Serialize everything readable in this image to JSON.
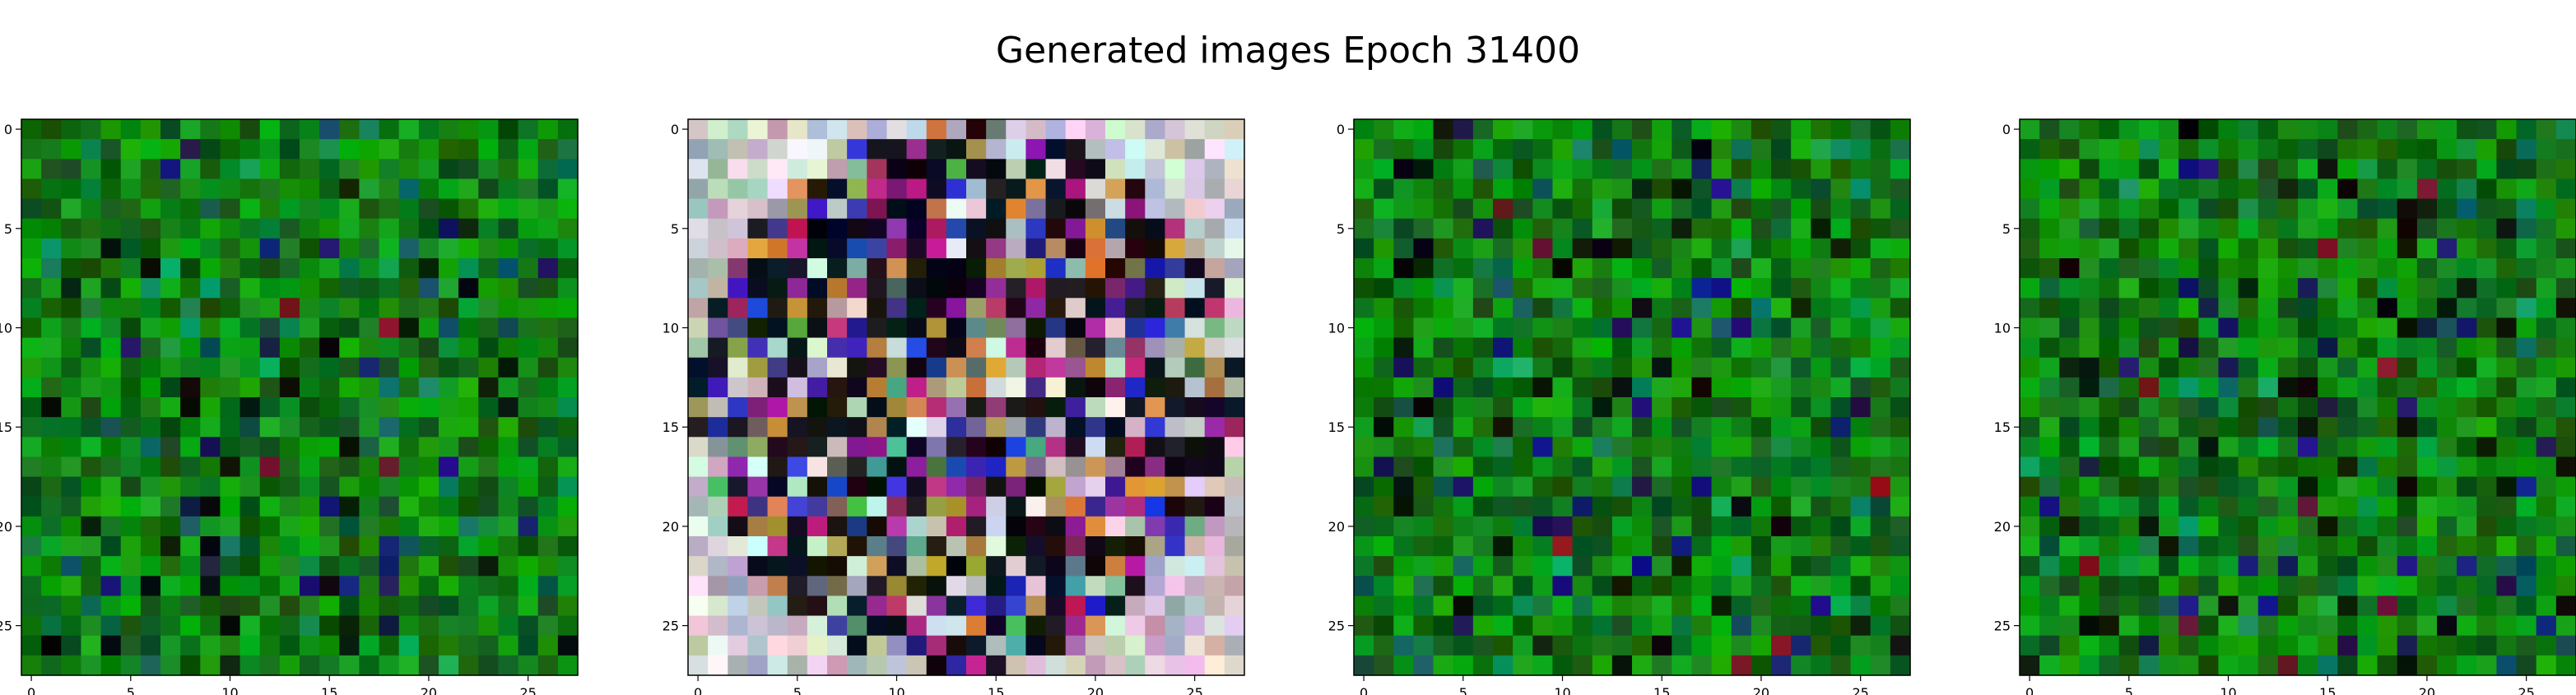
{
  "title": "Generated images Epoch 31400",
  "chart_data": [
    {
      "type": "heatmap",
      "description_source": "image grid 28x28 RGB, generated sample 1",
      "xlim": [
        -0.5,
        27.5
      ],
      "ylim": [
        27.5,
        -0.5
      ],
      "xticks": [
        0,
        5,
        10,
        15,
        20,
        25
      ],
      "yticks": [
        0,
        5,
        10,
        15,
        20,
        25
      ],
      "palette": "green",
      "seed": 11
    },
    {
      "type": "heatmap",
      "description_source": "image grid 28x28 RGB, generated sample 2",
      "xlim": [
        -0.5,
        27.5
      ],
      "ylim": [
        27.5,
        -0.5
      ],
      "xticks": [
        0,
        5,
        10,
        15,
        20,
        25
      ],
      "yticks": [
        0,
        5,
        10,
        15,
        20,
        25
      ],
      "palette": "pastel",
      "seed": 29
    },
    {
      "type": "heatmap",
      "description_source": "image grid 28x28 RGB, generated sample 3",
      "xlim": [
        -0.5,
        27.5
      ],
      "ylim": [
        27.5,
        -0.5
      ],
      "xticks": [
        0,
        5,
        10,
        15,
        20,
        25
      ],
      "yticks": [
        0,
        5,
        10,
        15,
        20,
        25
      ],
      "palette": "green",
      "seed": 47
    },
    {
      "type": "heatmap",
      "description_source": "image grid 28x28 RGB, generated sample 4",
      "xlim": [
        -0.5,
        27.5
      ],
      "ylim": [
        27.5,
        -0.5
      ],
      "xticks": [
        0,
        5,
        10,
        15,
        20,
        25
      ],
      "yticks": [
        0,
        5,
        10,
        15,
        20,
        25
      ],
      "palette": "green",
      "seed": 83
    }
  ]
}
